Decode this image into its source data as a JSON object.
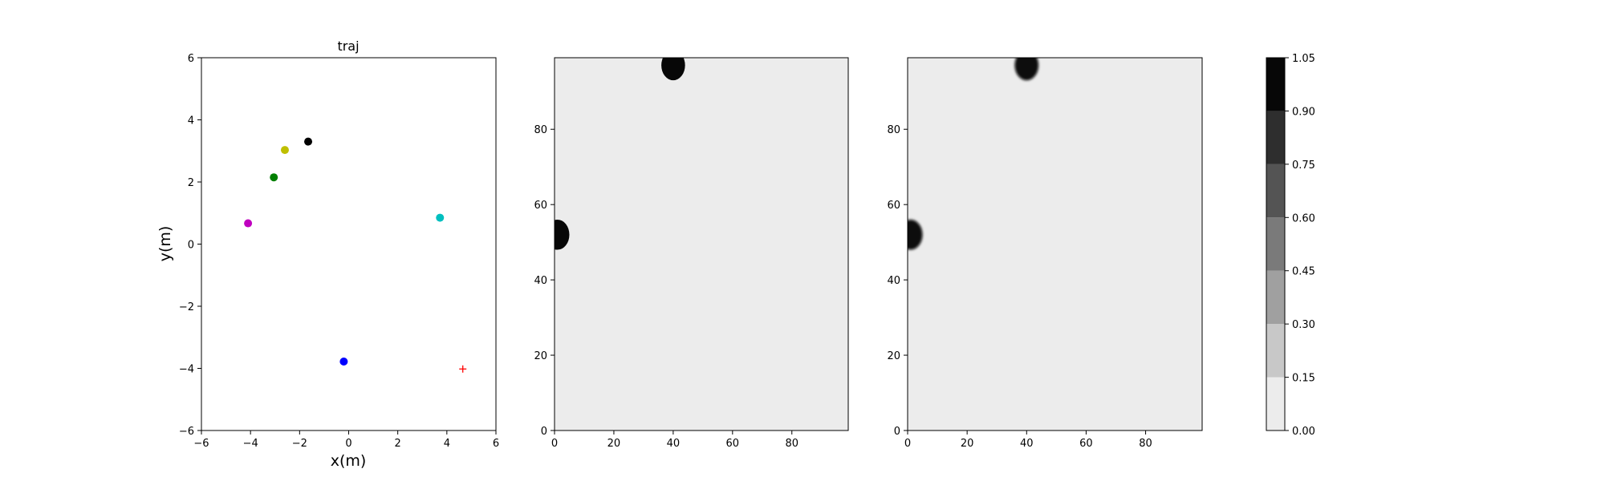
{
  "chart_data": [
    {
      "type": "scatter",
      "title": "traj",
      "xlabel": "x(m)",
      "ylabel": "y(m)",
      "xlim": [
        -6,
        6
      ],
      "ylim": [
        -6,
        6
      ],
      "xticks": [
        -6,
        -4,
        -2,
        0,
        2,
        4,
        6
      ],
      "yticks": [
        -6,
        -4,
        -2,
        0,
        2,
        4,
        6
      ],
      "tick_labels_x": [
        "−6",
        "−4",
        "−2",
        "0",
        "2",
        "4",
        "6"
      ],
      "tick_labels_y": [
        "−6",
        "−4",
        "−2",
        "0",
        "2",
        "4",
        "6"
      ],
      "points": [
        {
          "x": -1.65,
          "y": 3.3,
          "color": "#000000",
          "marker": "dot"
        },
        {
          "x": -2.6,
          "y": 3.03,
          "color": "#bfbf00",
          "marker": "dot"
        },
        {
          "x": -3.05,
          "y": 2.15,
          "color": "#007f00",
          "marker": "dot"
        },
        {
          "x": -4.1,
          "y": 0.67,
          "color": "#bf00bf",
          "marker": "dot"
        },
        {
          "x": 3.72,
          "y": 0.85,
          "color": "#00bfbf",
          "marker": "dot"
        },
        {
          "x": -0.2,
          "y": -3.78,
          "color": "#0000ff",
          "marker": "dot"
        },
        {
          "x": 4.65,
          "y": -4.02,
          "color": "#ff0000",
          "marker": "plus"
        }
      ],
      "grid": false
    },
    {
      "type": "heatmap",
      "title": "",
      "xlim": [
        0,
        99
      ],
      "ylim": [
        0,
        99
      ],
      "xticks": [
        0,
        20,
        40,
        60,
        80
      ],
      "yticks": [
        0,
        20,
        40,
        60,
        80
      ],
      "background_value": 0.05,
      "blobs": [
        {
          "cx": 40,
          "cy": 97,
          "r": 4,
          "value": 1.0
        },
        {
          "cx": 1,
          "cy": 52,
          "r": 4,
          "value": 1.0
        }
      ]
    },
    {
      "type": "heatmap",
      "title": "",
      "xlim": [
        0,
        99
      ],
      "ylim": [
        0,
        99
      ],
      "xticks": [
        0,
        20,
        40,
        60,
        80
      ],
      "yticks": [
        0,
        20,
        40,
        60,
        80
      ],
      "background_value": 0.05,
      "blobs": [
        {
          "cx": 40,
          "cy": 97,
          "r": 4,
          "value": 1.0
        },
        {
          "cx": 1,
          "cy": 52,
          "r": 4,
          "value": 1.0
        }
      ],
      "smooth": true
    }
  ],
  "colorbar": {
    "levels": [
      0.0,
      0.15,
      0.3,
      0.45,
      0.6,
      0.75,
      0.9,
      1.05
    ],
    "tick_labels": [
      "0.00",
      "0.15",
      "0.30",
      "0.45",
      "0.60",
      "0.75",
      "0.90",
      "1.05"
    ],
    "colors": [
      "#ececec",
      "#c8c8c8",
      "#a0a0a0",
      "#7a7a7a",
      "#545454",
      "#2e2e2e",
      "#070707"
    ]
  }
}
